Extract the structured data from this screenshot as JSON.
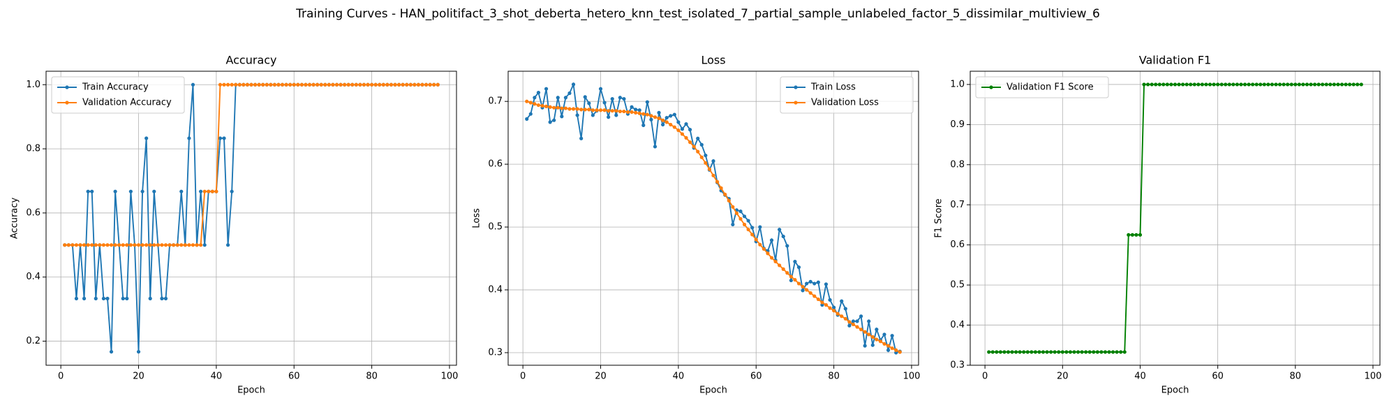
{
  "title": "Training Curves - HAN_politifact_3_shot_deberta_hetero_knn_test_isolated_7_partial_sample_unlabeled_factor_5_dissimilar_multiview_6",
  "chart_data": [
    {
      "type": "line",
      "title": "Accuracy",
      "xlabel": "Epoch",
      "ylabel": "Accuracy",
      "grid": true,
      "legend": "upper left",
      "xlim": [
        -3.8,
        101.8
      ],
      "xticks": [
        0,
        20,
        40,
        60,
        80,
        100
      ],
      "ylim": [
        0.125,
        1.042
      ],
      "yticks": [
        0.2,
        0.4,
        0.6,
        0.8,
        {
          "value": 1.0,
          "label": "1.0"
        }
      ],
      "x": [
        1,
        2,
        3,
        4,
        5,
        6,
        7,
        8,
        9,
        10,
        11,
        12,
        13,
        14,
        15,
        16,
        17,
        18,
        19,
        20,
        21,
        22,
        23,
        24,
        25,
        26,
        27,
        28,
        29,
        30,
        31,
        32,
        33,
        34,
        35,
        36,
        37,
        38,
        39,
        40,
        41,
        42,
        43,
        44,
        45,
        46,
        47,
        48,
        49,
        50,
        51,
        52,
        53,
        54,
        55,
        56,
        57,
        58,
        59,
        60,
        61,
        62,
        63,
        64,
        65,
        66,
        67,
        68,
        69,
        70,
        71,
        72,
        73,
        74,
        75,
        76,
        77,
        78,
        79,
        80,
        81,
        82,
        83,
        84,
        85,
        86,
        87,
        88,
        89,
        90,
        91,
        92,
        93,
        94,
        95,
        96,
        97
      ],
      "series": [
        {
          "name": "Train Accuracy",
          "color": "#1f77b4",
          "values": [
            0.5,
            0.5,
            0.5,
            0.333,
            0.5,
            0.333,
            0.667,
            0.667,
            0.333,
            0.5,
            0.333,
            0.333,
            0.167,
            0.667,
            0.5,
            0.333,
            0.333,
            0.667,
            0.5,
            0.167,
            0.667,
            0.833,
            0.333,
            0.667,
            0.5,
            0.333,
            0.333,
            0.5,
            0.5,
            0.5,
            0.667,
            0.5,
            0.833,
            1.0,
            0.5,
            0.667,
            0.5,
            0.667,
            0.667,
            0.667,
            0.833,
            0.833,
            0.5,
            0.667,
            1.0,
            1.0,
            1.0,
            1.0,
            1.0,
            1.0,
            1.0,
            1.0,
            1.0,
            1.0,
            1.0,
            1.0,
            1.0,
            1.0,
            1.0,
            1.0,
            1.0,
            1.0,
            1.0,
            1.0,
            1.0,
            1.0,
            1.0,
            1.0,
            1.0,
            1.0,
            1.0,
            1.0,
            1.0,
            1.0,
            1.0,
            1.0,
            1.0,
            1.0,
            1.0,
            1.0,
            1.0,
            1.0,
            1.0,
            1.0,
            1.0,
            1.0,
            1.0,
            1.0,
            1.0,
            1.0,
            1.0,
            1.0,
            1.0,
            1.0,
            1.0,
            1.0,
            1.0
          ]
        },
        {
          "name": "Validation Accuracy",
          "color": "#ff7f0e",
          "values": [
            0.5,
            0.5,
            0.5,
            0.5,
            0.5,
            0.5,
            0.5,
            0.5,
            0.5,
            0.5,
            0.5,
            0.5,
            0.5,
            0.5,
            0.5,
            0.5,
            0.5,
            0.5,
            0.5,
            0.5,
            0.5,
            0.5,
            0.5,
            0.5,
            0.5,
            0.5,
            0.5,
            0.5,
            0.5,
            0.5,
            0.5,
            0.5,
            0.5,
            0.5,
            0.5,
            0.5,
            0.667,
            0.667,
            0.667,
            0.667,
            1.0,
            1.0,
            1.0,
            1.0,
            1.0,
            1.0,
            1.0,
            1.0,
            1.0,
            1.0,
            1.0,
            1.0,
            1.0,
            1.0,
            1.0,
            1.0,
            1.0,
            1.0,
            1.0,
            1.0,
            1.0,
            1.0,
            1.0,
            1.0,
            1.0,
            1.0,
            1.0,
            1.0,
            1.0,
            1.0,
            1.0,
            1.0,
            1.0,
            1.0,
            1.0,
            1.0,
            1.0,
            1.0,
            1.0,
            1.0,
            1.0,
            1.0,
            1.0,
            1.0,
            1.0,
            1.0,
            1.0,
            1.0,
            1.0,
            1.0,
            1.0,
            1.0,
            1.0,
            1.0,
            1.0,
            1.0,
            1.0
          ]
        }
      ]
    },
    {
      "type": "line",
      "title": "Loss",
      "xlabel": "Epoch",
      "ylabel": "Loss",
      "grid": true,
      "legend": "upper right",
      "xlim": [
        -3.8,
        101.8
      ],
      "xticks": [
        0,
        20,
        40,
        60,
        80,
        100
      ],
      "ylim": [
        0.28,
        0.748
      ],
      "yticks": [
        0.3,
        0.4,
        0.5,
        0.6,
        0.7
      ],
      "x": [
        1,
        2,
        3,
        4,
        5,
        6,
        7,
        8,
        9,
        10,
        11,
        12,
        13,
        14,
        15,
        16,
        17,
        18,
        19,
        20,
        21,
        22,
        23,
        24,
        25,
        26,
        27,
        28,
        29,
        30,
        31,
        32,
        33,
        34,
        35,
        36,
        37,
        38,
        39,
        40,
        41,
        42,
        43,
        44,
        45,
        46,
        47,
        48,
        49,
        50,
        51,
        52,
        53,
        54,
        55,
        56,
        57,
        58,
        59,
        60,
        61,
        62,
        63,
        64,
        65,
        66,
        67,
        68,
        69,
        70,
        71,
        72,
        73,
        74,
        75,
        76,
        77,
        78,
        79,
        80,
        81,
        82,
        83,
        84,
        85,
        86,
        87,
        88,
        89,
        90,
        91,
        92,
        93,
        94,
        95,
        96,
        97
      ],
      "series": [
        {
          "name": "Train Loss",
          "color": "#1f77b4",
          "values": [
            0.672,
            0.68,
            0.706,
            0.714,
            0.69,
            0.72,
            0.667,
            0.67,
            0.706,
            0.676,
            0.706,
            0.713,
            0.727,
            0.678,
            0.641,
            0.707,
            0.697,
            0.678,
            0.685,
            0.72,
            0.698,
            0.675,
            0.704,
            0.678,
            0.706,
            0.704,
            0.68,
            0.691,
            0.687,
            0.686,
            0.662,
            0.699,
            0.671,
            0.628,
            0.682,
            0.663,
            0.674,
            0.677,
            0.679,
            0.667,
            0.656,
            0.664,
            0.655,
            0.626,
            0.641,
            0.631,
            0.614,
            0.591,
            0.605,
            0.571,
            0.558,
            0.551,
            0.545,
            0.504,
            0.527,
            0.525,
            0.517,
            0.51,
            0.499,
            0.477,
            0.5,
            0.466,
            0.462,
            0.479,
            0.447,
            0.496,
            0.485,
            0.47,
            0.415,
            0.445,
            0.436,
            0.399,
            0.41,
            0.413,
            0.41,
            0.412,
            0.376,
            0.409,
            0.384,
            0.372,
            0.36,
            0.382,
            0.37,
            0.343,
            0.35,
            0.35,
            0.358,
            0.311,
            0.35,
            0.312,
            0.337,
            0.32,
            0.329,
            0.304,
            0.327,
            0.3,
            0.302
          ]
        },
        {
          "name": "Validation Loss",
          "color": "#ff7f0e",
          "values": [
            0.7,
            0.698,
            0.696,
            0.694,
            0.693,
            0.692,
            0.691,
            0.69,
            0.69,
            0.689,
            0.689,
            0.688,
            0.688,
            0.688,
            0.687,
            0.687,
            0.687,
            0.686,
            0.686,
            0.686,
            0.686,
            0.685,
            0.685,
            0.685,
            0.684,
            0.684,
            0.683,
            0.683,
            0.682,
            0.681,
            0.68,
            0.679,
            0.677,
            0.675,
            0.673,
            0.67,
            0.667,
            0.663,
            0.659,
            0.654,
            0.648,
            0.642,
            0.635,
            0.628,
            0.62,
            0.611,
            0.602,
            0.592,
            0.582,
            0.572,
            0.562,
            0.552,
            0.542,
            0.532,
            0.522,
            0.513,
            0.504,
            0.496,
            0.488,
            0.48,
            0.472,
            0.465,
            0.458,
            0.451,
            0.445,
            0.439,
            0.433,
            0.427,
            0.421,
            0.416,
            0.41,
            0.405,
            0.4,
            0.395,
            0.39,
            0.385,
            0.38,
            0.376,
            0.371,
            0.367,
            0.362,
            0.358,
            0.354,
            0.349,
            0.345,
            0.341,
            0.337,
            0.333,
            0.329,
            0.325,
            0.321,
            0.318,
            0.314,
            0.311,
            0.307,
            0.304,
            0.301
          ]
        }
      ]
    },
    {
      "type": "line",
      "title": "Validation F1",
      "xlabel": "Epoch",
      "ylabel": "F1 Score",
      "grid": true,
      "legend": "upper left",
      "xlim": [
        -3.8,
        101.8
      ],
      "xticks": [
        0,
        20,
        40,
        60,
        80,
        100
      ],
      "ylim": [
        0.3,
        1.033
      ],
      "yticks": [
        0.3,
        0.4,
        0.5,
        0.6,
        0.7,
        0.8,
        0.9,
        {
          "value": 1.0,
          "label": "1.0"
        }
      ],
      "x": [
        1,
        2,
        3,
        4,
        5,
        6,
        7,
        8,
        9,
        10,
        11,
        12,
        13,
        14,
        15,
        16,
        17,
        18,
        19,
        20,
        21,
        22,
        23,
        24,
        25,
        26,
        27,
        28,
        29,
        30,
        31,
        32,
        33,
        34,
        35,
        36,
        37,
        38,
        39,
        40,
        41,
        42,
        43,
        44,
        45,
        46,
        47,
        48,
        49,
        50,
        51,
        52,
        53,
        54,
        55,
        56,
        57,
        58,
        59,
        60,
        61,
        62,
        63,
        64,
        65,
        66,
        67,
        68,
        69,
        70,
        71,
        72,
        73,
        74,
        75,
        76,
        77,
        78,
        79,
        80,
        81,
        82,
        83,
        84,
        85,
        86,
        87,
        88,
        89,
        90,
        91,
        92,
        93,
        94,
        95,
        96,
        97
      ],
      "series": [
        {
          "name": "Validation F1 Score",
          "color": "#008000",
          "values": [
            0.333,
            0.333,
            0.333,
            0.333,
            0.333,
            0.333,
            0.333,
            0.333,
            0.333,
            0.333,
            0.333,
            0.333,
            0.333,
            0.333,
            0.333,
            0.333,
            0.333,
            0.333,
            0.333,
            0.333,
            0.333,
            0.333,
            0.333,
            0.333,
            0.333,
            0.333,
            0.333,
            0.333,
            0.333,
            0.333,
            0.333,
            0.333,
            0.333,
            0.333,
            0.333,
            0.333,
            0.625,
            0.625,
            0.625,
            0.625,
            1.0,
            1.0,
            1.0,
            1.0,
            1.0,
            1.0,
            1.0,
            1.0,
            1.0,
            1.0,
            1.0,
            1.0,
            1.0,
            1.0,
            1.0,
            1.0,
            1.0,
            1.0,
            1.0,
            1.0,
            1.0,
            1.0,
            1.0,
            1.0,
            1.0,
            1.0,
            1.0,
            1.0,
            1.0,
            1.0,
            1.0,
            1.0,
            1.0,
            1.0,
            1.0,
            1.0,
            1.0,
            1.0,
            1.0,
            1.0,
            1.0,
            1.0,
            1.0,
            1.0,
            1.0,
            1.0,
            1.0,
            1.0,
            1.0,
            1.0,
            1.0,
            1.0,
            1.0,
            1.0,
            1.0,
            1.0,
            1.0
          ]
        }
      ]
    }
  ]
}
